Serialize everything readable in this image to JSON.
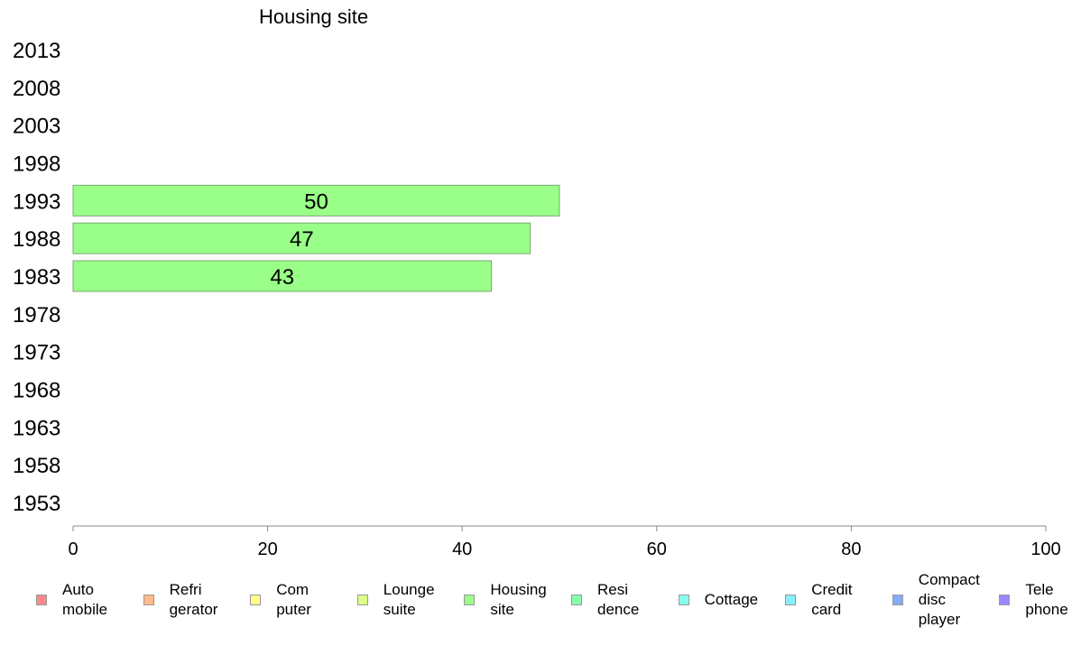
{
  "chart_data": {
    "type": "bar",
    "orientation": "horizontal",
    "title": "Housing site",
    "categories": [
      "1953",
      "1958",
      "1963",
      "1968",
      "1973",
      "1978",
      "1983",
      "1988",
      "1993",
      "1998",
      "2003",
      "2008",
      "2013"
    ],
    "series": [
      {
        "name": "Housing site",
        "color": "#99ff88",
        "values": [
          null,
          null,
          null,
          null,
          null,
          null,
          43,
          47,
          50,
          null,
          null,
          null,
          null
        ]
      }
    ],
    "xlim": [
      0,
      100
    ],
    "xticks": [
      "0",
      "20",
      "40",
      "60",
      "80",
      "100"
    ],
    "grid": false,
    "legend_position": "bottom"
  },
  "legend": [
    {
      "label": "Auto\nmobile",
      "color": "#ff8888"
    },
    {
      "label": "Refri\ngerator",
      "color": "#ffbb88"
    },
    {
      "label": "Com\nputer",
      "color": "#ffff88"
    },
    {
      "label": "Lounge\nsuite",
      "color": "#ddff88"
    },
    {
      "label": "Housing\nsite",
      "color": "#99ff88"
    },
    {
      "label": "Resi\ndence",
      "color": "#88ffaa"
    },
    {
      "label": "Cottage",
      "color": "#88ffee"
    },
    {
      "label": "Credit\ncard",
      "color": "#88eeff"
    },
    {
      "label": "Compact\ndisc\nplayer",
      "color": "#88aaff"
    },
    {
      "label": "Tele\nphone",
      "color": "#9988ff"
    }
  ]
}
